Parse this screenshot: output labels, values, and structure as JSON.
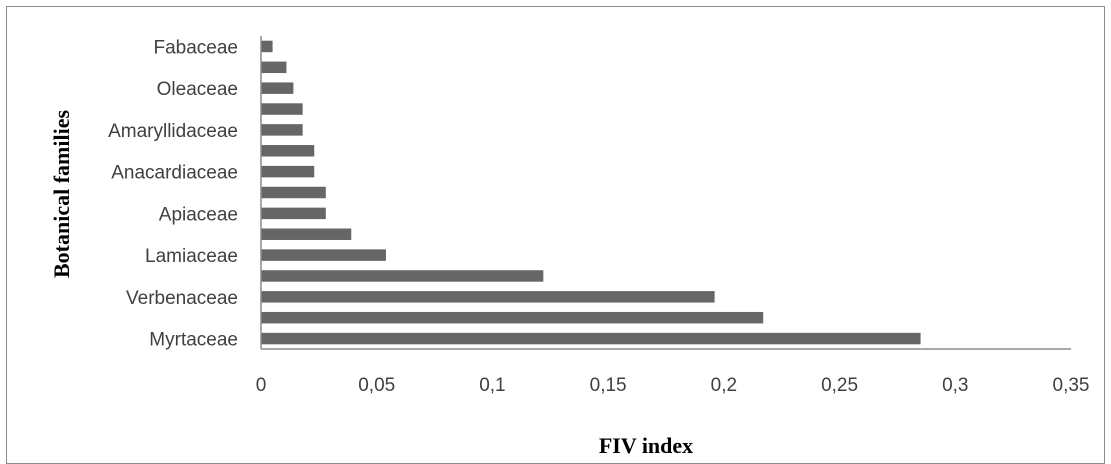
{
  "chart_data": {
    "type": "bar",
    "orientation": "horizontal",
    "title": "",
    "xlabel": "FIV index",
    "ylabel": "Botanical families",
    "categories": [
      "Myrtaceae",
      "",
      "Verbenaceae",
      "",
      "Lamiaceae",
      "",
      "Apiaceae",
      "",
      "Anacardiaceae",
      "",
      "Amaryllidaceae",
      "",
      "Oleaceae",
      "",
      "Fabaceae"
    ],
    "values": [
      0.285,
      0.217,
      0.196,
      0.122,
      0.054,
      0.039,
      0.028,
      0.028,
      0.023,
      0.023,
      0.018,
      0.018,
      0.014,
      0.011,
      0.005
    ],
    "xlim": [
      0,
      0.35
    ],
    "xticks": [
      "0",
      "0,05",
      "0,1",
      "0,15",
      "0,2",
      "0,25",
      "0,3",
      "0,35"
    ],
    "bar_color": "#666666",
    "grid": false,
    "legend": "none"
  }
}
